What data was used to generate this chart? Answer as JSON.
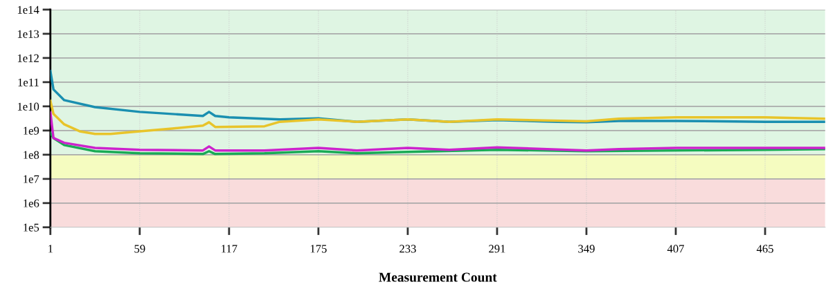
{
  "chart_data": {
    "type": "line",
    "xlabel": "Measurement Count",
    "log": "y",
    "grid": true,
    "legend": false,
    "marker": "none",
    "line_style": "solid",
    "xlim": [
      1,
      504
    ],
    "xticks": [
      1,
      59,
      117,
      175,
      233,
      291,
      349,
      407,
      465
    ],
    "ylim": [
      100000,
      100000000000000
    ],
    "yticks": [
      {
        "value": 100000,
        "label": "1e5"
      },
      {
        "value": 1000000,
        "label": "1e6"
      },
      {
        "value": 10000000,
        "label": "1e7"
      },
      {
        "value": 100000000,
        "label": "1e8"
      },
      {
        "value": 1000000000,
        "label": "1e9"
      },
      {
        "value": 10000000000,
        "label": "1e10"
      },
      {
        "value": 100000000000,
        "label": "1e11"
      },
      {
        "value": 1000000000000,
        "label": "1e12"
      },
      {
        "value": 10000000000000,
        "label": "1e13"
      },
      {
        "value": 100000000000000,
        "label": "1e14"
      }
    ],
    "bands": [
      {
        "axis": "y",
        "from": 100000,
        "to": 10000000,
        "color": "#f9dcdc"
      },
      {
        "axis": "y",
        "from": 10000000,
        "to": 100000000,
        "color": "#f5fcc0"
      },
      {
        "axis": "y",
        "from": 100000000,
        "to": 100000000000000,
        "color": "#dff5e3"
      }
    ],
    "series": [
      {
        "color": "#1a8fb0",
        "x": [
          1,
          3,
          10,
          30,
          59,
          100,
          104,
          108,
          117,
          150,
          175,
          200,
          233,
          260,
          291,
          330,
          349,
          370,
          407,
          465,
          504
        ],
        "values": [
          290000000000.0,
          50000000000.0,
          18000000000.0,
          9300000000.0,
          5900000000.0,
          4000000000.0,
          5900000000.0,
          4000000000.0,
          3500000000.0,
          2900000000.0,
          3200000000.0,
          2300000000.0,
          2900000000.0,
          2300000000.0,
          2700000000.0,
          2300000000.0,
          2200000000.0,
          2500000000.0,
          2500000000.0,
          2300000000.0,
          2300000000.0
        ]
      },
      {
        "color": "#e8c42a",
        "x": [
          1,
          3,
          10,
          20,
          30,
          40,
          59,
          80,
          100,
          104,
          108,
          140,
          150,
          175,
          200,
          233,
          260,
          291,
          349,
          370,
          407,
          465,
          504
        ],
        "values": [
          17000000000.0,
          4900000000.0,
          1800000000.0,
          930000000.0,
          720000000.0,
          720000000.0,
          930000000.0,
          1200000000.0,
          1600000000.0,
          2200000000.0,
          1400000000.0,
          1500000000.0,
          2300000000.0,
          2900000000.0,
          2300000000.0,
          2900000000.0,
          2300000000.0,
          2900000000.0,
          2400000000.0,
          3100000000.0,
          3500000000.0,
          3500000000.0,
          3100000000.0
        ]
      },
      {
        "color": "#1aaa55",
        "x": [
          1,
          3,
          10,
          30,
          59,
          100,
          104,
          108,
          140,
          175,
          200,
          233,
          291,
          349,
          465,
          504
        ],
        "values": [
          810000000.0,
          490000000.0,
          250000000.0,
          140000000.0,
          115000000.0,
          107000000.0,
          140000000.0,
          107000000.0,
          115000000.0,
          140000000.0,
          115000000.0,
          130000000.0,
          160000000.0,
          140000000.0,
          160000000.0,
          170000000.0
        ]
      },
      {
        "color": "#cc22cc",
        "x": [
          1,
          3,
          10,
          30,
          59,
          100,
          104,
          108,
          140,
          175,
          200,
          233,
          260,
          291,
          349,
          370,
          407,
          465,
          504
        ],
        "values": [
          5500000000.0,
          490000000.0,
          310000000.0,
          190000000.0,
          160000000.0,
          150000000.0,
          220000000.0,
          150000000.0,
          150000000.0,
          190000000.0,
          150000000.0,
          190000000.0,
          160000000.0,
          200000000.0,
          150000000.0,
          170000000.0,
          190000000.0,
          190000000.0,
          190000000.0
        ]
      }
    ]
  }
}
